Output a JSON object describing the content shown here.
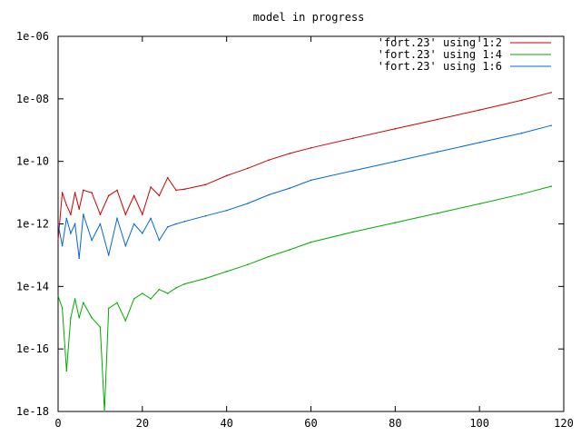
{
  "chart_data": {
    "type": "line",
    "title": "model in progress",
    "xlabel": "",
    "ylabel": "",
    "xlim": [
      0,
      120
    ],
    "ylim": [
      1e-18,
      1e-06
    ],
    "yscale": "log",
    "grid": false,
    "legend_position": "top-right",
    "x_ticks": [
      {
        "value": 0,
        "label": "0"
      },
      {
        "value": 20,
        "label": "20"
      },
      {
        "value": 40,
        "label": "40"
      },
      {
        "value": 60,
        "label": "60"
      },
      {
        "value": 80,
        "label": "80"
      },
      {
        "value": 100,
        "label": "100"
      },
      {
        "value": 120,
        "label": "120"
      }
    ],
    "y_ticks": [
      {
        "value": 1e-18,
        "label": "1e-18"
      },
      {
        "value": 1e-16,
        "label": "1e-16"
      },
      {
        "value": 1e-14,
        "label": "1e-14"
      },
      {
        "value": 1e-12,
        "label": "1e-12"
      },
      {
        "value": 1e-10,
        "label": "1e-10"
      },
      {
        "value": 1e-08,
        "label": "1e-08"
      },
      {
        "value": 1e-06,
        "label": "1e-06"
      }
    ],
    "series": [
      {
        "name": "'fort.23' using 1:2",
        "color": "#cc0000",
        "x": [
          0,
          1,
          2,
          3,
          4,
          5,
          6,
          8,
          10,
          12,
          14,
          16,
          18,
          20,
          22,
          24,
          26,
          28,
          30,
          35,
          40,
          45,
          50,
          55,
          60,
          70,
          80,
          90,
          100,
          110,
          117
        ],
        "y": [
          3e-13,
          1e-11,
          4e-12,
          2e-12,
          1e-11,
          3e-12,
          1.2e-11,
          1e-11,
          2e-12,
          8e-12,
          1.2e-11,
          2e-12,
          8e-12,
          2e-12,
          1.5e-11,
          8e-12,
          3e-11,
          1.2e-11,
          1.3e-11,
          1.8e-11,
          3.5e-11,
          6e-11,
          1.1e-10,
          1.8e-10,
          2.7e-10,
          5.5e-10,
          1.1e-09,
          2.2e-09,
          4.4e-09,
          9e-09,
          1.6e-08
        ]
      },
      {
        "name": "'fort.23' using 1:4",
        "color": "#00aa00",
        "x": [
          0,
          1,
          2,
          3,
          4,
          5,
          6,
          8,
          10,
          11,
          12,
          14,
          16,
          18,
          20,
          22,
          24,
          26,
          28,
          30,
          35,
          40,
          45,
          50,
          55,
          60,
          70,
          80,
          90,
          100,
          110,
          117
        ],
        "y": [
          5e-15,
          2e-15,
          2e-17,
          1e-15,
          4e-15,
          1e-15,
          3e-15,
          1e-15,
          5e-16,
          1e-18,
          2e-15,
          3e-15,
          8e-16,
          4e-15,
          6e-15,
          4e-15,
          8e-15,
          6e-15,
          9e-15,
          1.2e-14,
          1.8e-14,
          3e-14,
          5e-14,
          9e-14,
          1.5e-13,
          2.6e-13,
          5.5e-13,
          1.1e-12,
          2.2e-12,
          4.4e-12,
          9e-12,
          1.6e-11
        ]
      },
      {
        "name": "'fort.23' using 1:6",
        "color": "#0066dd",
        "x": [
          0,
          1,
          2,
          3,
          4,
          5,
          6,
          8,
          10,
          12,
          14,
          16,
          18,
          20,
          22,
          24,
          26,
          28,
          30,
          35,
          40,
          45,
          50,
          55,
          60,
          70,
          80,
          90,
          100,
          110,
          117
        ],
        "y": [
          1e-12,
          2e-13,
          1.5e-12,
          5e-13,
          1e-12,
          8e-14,
          2e-12,
          3e-13,
          1e-12,
          1e-13,
          1.5e-12,
          2e-13,
          1e-12,
          5e-13,
          1.5e-12,
          3e-13,
          8e-13,
          1e-12,
          1.2e-12,
          1.8e-12,
          2.7e-12,
          4.5e-12,
          8.5e-12,
          1.4e-11,
          2.5e-11,
          5e-11,
          1e-10,
          2e-10,
          4e-10,
          8e-10,
          1.4e-09
        ]
      }
    ]
  }
}
